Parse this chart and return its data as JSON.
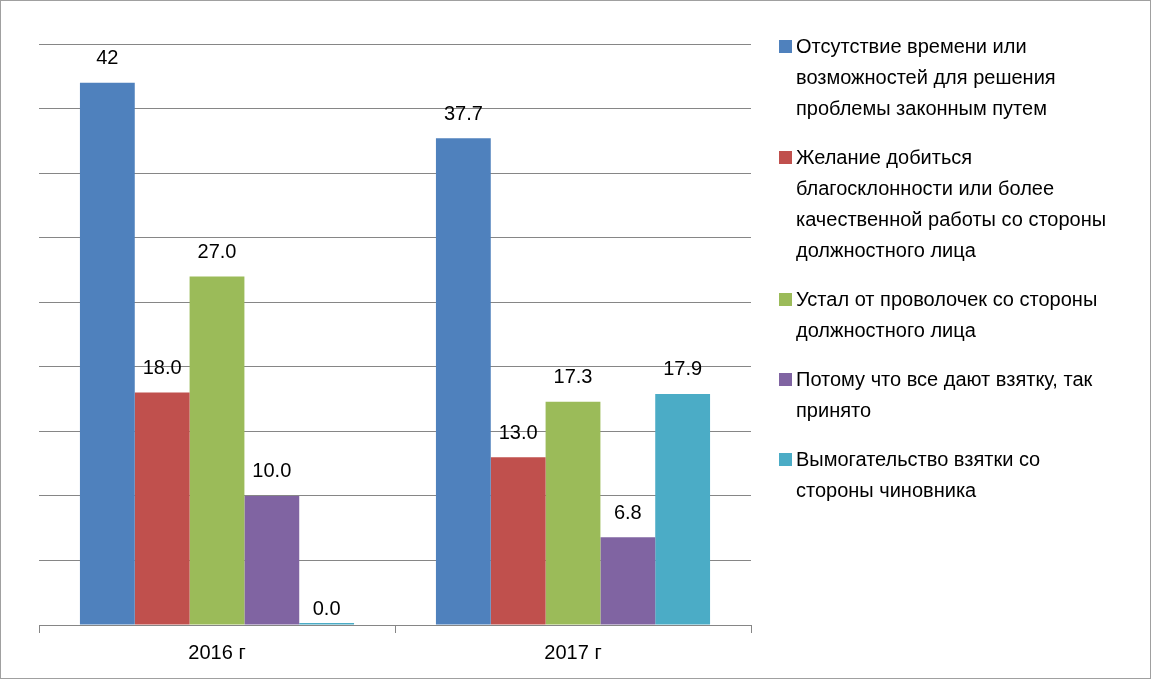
{
  "chart_data": {
    "type": "bar",
    "categories": [
      "2016 г",
      "2017 г"
    ],
    "series": [
      {
        "name": "Отсутствие времени или возможностей для решения проблемы законным путем",
        "color": "#4f81bd",
        "values": [
          42,
          37.7
        ],
        "value_labels": [
          "42",
          "37.7"
        ]
      },
      {
        "name": "Желание добиться благосклонности или более качественной работы со стороны должностного лица",
        "color": "#c0504d",
        "values": [
          18.0,
          13.0
        ],
        "value_labels": [
          "18.0",
          "13.0"
        ]
      },
      {
        "name": "Устал от проволочек со стороны должностного лица",
        "color": "#9bbb59",
        "values": [
          27.0,
          17.3
        ],
        "value_labels": [
          "27.0",
          "17.3"
        ]
      },
      {
        "name": "Потому что все дают взятку, так принято",
        "color": "#8064a2",
        "values": [
          10.0,
          6.8
        ],
        "value_labels": [
          "10.0",
          "6.8"
        ]
      },
      {
        "name": "Вымогательство взятки со стороны чиновника",
        "color": "#4bacc6",
        "values": [
          0.0,
          17.9
        ],
        "value_labels": [
          "0.0",
          "17.9"
        ]
      }
    ],
    "ylim": [
      0,
      45
    ],
    "yticks": [
      {
        "value": 0,
        "label": null
      },
      {
        "value": 5,
        "label": null
      },
      {
        "value": 10,
        "label": null
      },
      {
        "value": 15,
        "label": null
      },
      {
        "value": 20,
        "label": null
      },
      {
        "value": 25,
        "label": null
      },
      {
        "value": 30,
        "label": null
      },
      {
        "value": 35,
        "label": null
      },
      {
        "value": 40,
        "label": null
      },
      {
        "value": 45,
        "label": null
      }
    ],
    "grid": "y",
    "tick_labels": "x",
    "legend": "right"
  }
}
